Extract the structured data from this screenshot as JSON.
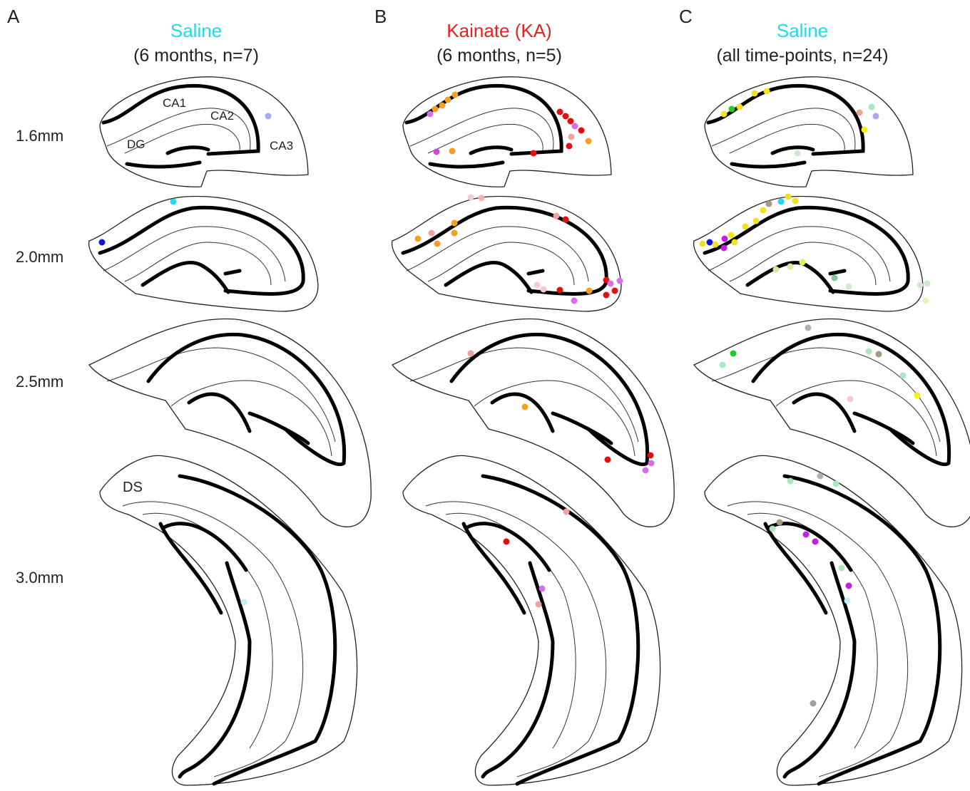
{
  "panels": [
    {
      "letter": "A",
      "title": "Saline",
      "title_color": "#22d8ea",
      "subtitle": "(6 months, n=7)"
    },
    {
      "letter": "B",
      "title": "Kainate (KA)",
      "title_color": "#e8201e",
      "subtitle": "(6 months, n=5)"
    },
    {
      "letter": "C",
      "title": "Saline",
      "title_color": "#22d8ea",
      "subtitle": "(all time-points, n=24)"
    }
  ],
  "depths": [
    "1.6mm",
    "2.0mm",
    "2.5mm",
    "3.0mm"
  ],
  "regions": {
    "ca1": "CA1",
    "ca2": "CA2",
    "ca3": "CA3",
    "dg": "DG",
    "ds": "DS"
  }
}
